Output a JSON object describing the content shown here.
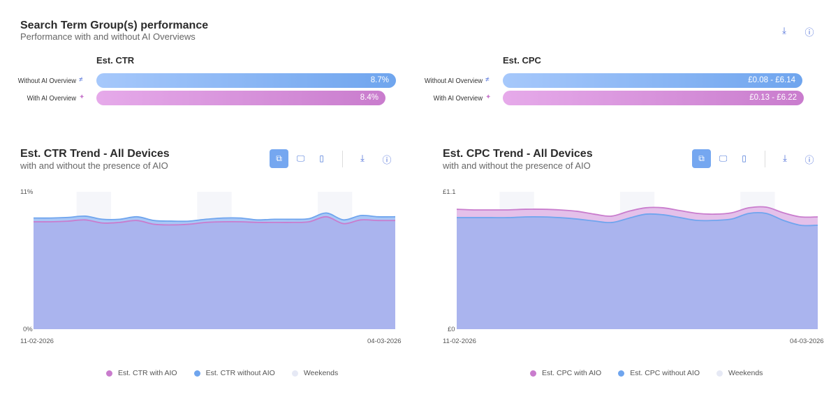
{
  "summary": {
    "title": "Search Term Group(s) performance",
    "subtitle": "Performance with and without AI Overviews",
    "ctr": {
      "label": "Est. CTR",
      "without_label": "Without AI Overview",
      "with_label": "With AI Overview",
      "without_value": "8.7%",
      "with_value": "8.4%"
    },
    "cpc": {
      "label": "Est. CPC",
      "without_label": "Without AI Overview",
      "with_label": "With AI Overview",
      "without_value": "£0.08 - £6.14",
      "with_value": "£0.13 - £6.22"
    },
    "icons": [
      "download-icon",
      "info-icon"
    ]
  },
  "colors": {
    "with": "#c97ccd",
    "without": "#6fa5ee",
    "area": "#aab4ee",
    "weekend": "#f5f6fa"
  },
  "chart_data": [
    {
      "type": "area",
      "title": "Est. CTR Trend - All Devices",
      "subtitle": "with and without the presence of AIO",
      "x_start": "11-02-2026",
      "x_end": "04-03-2026",
      "ytick_labels": [
        "11%",
        "0%"
      ],
      "ylim": [
        0,
        11
      ],
      "weekend_label": "Weekends",
      "series": [
        {
          "name": "Est. CTR with AIO",
          "values": [
            8.6,
            8.6,
            8.65,
            8.75,
            8.5,
            8.55,
            8.7,
            8.4,
            8.35,
            8.4,
            8.55,
            8.6,
            8.6,
            8.55,
            8.55,
            8.55,
            8.6,
            9.0,
            8.45,
            8.75,
            8.7,
            8.7
          ]
        },
        {
          "name": "Est. CTR without AIO",
          "values": [
            8.9,
            8.9,
            8.95,
            9.05,
            8.8,
            8.8,
            9.0,
            8.7,
            8.65,
            8.65,
            8.8,
            8.9,
            8.9,
            8.75,
            8.8,
            8.8,
            8.85,
            9.3,
            8.75,
            9.1,
            9.0,
            9.0
          ]
        }
      ]
    },
    {
      "type": "area",
      "title": "Est. CPC Trend - All Devices",
      "subtitle": "with and without the presence of AIO",
      "x_start": "11-02-2026",
      "x_end": "04-03-2026",
      "ytick_labels": [
        "£1.1",
        "£0"
      ],
      "ylim": [
        0,
        1.1
      ],
      "weekend_label": "Weekends",
      "series": [
        {
          "name": "Est. CPC with AIO",
          "values": [
            0.96,
            0.955,
            0.955,
            0.955,
            0.96,
            0.96,
            0.955,
            0.944,
            0.921,
            0.905,
            0.944,
            0.972,
            0.972,
            0.949,
            0.927,
            0.921,
            0.932,
            0.972,
            0.977,
            0.932,
            0.899,
            0.899
          ]
        },
        {
          "name": "Est. CPC without AIO",
          "values": [
            0.893,
            0.893,
            0.893,
            0.893,
            0.899,
            0.899,
            0.893,
            0.882,
            0.866,
            0.854,
            0.888,
            0.921,
            0.916,
            0.893,
            0.871,
            0.871,
            0.882,
            0.927,
            0.927,
            0.871,
            0.832,
            0.832
          ]
        }
      ]
    }
  ]
}
